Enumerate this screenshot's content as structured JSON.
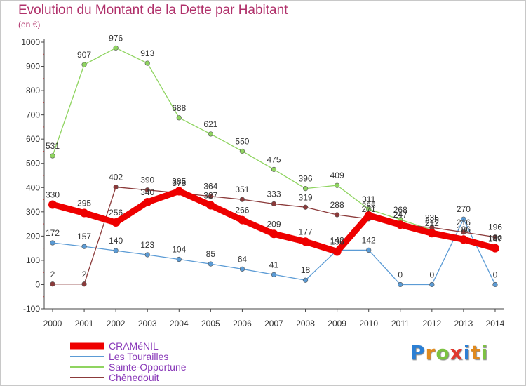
{
  "header": {
    "title": "Evolution du Montant de la Dette par Habitant",
    "subtitle": "(en €)"
  },
  "logo": {
    "letters": [
      "P",
      "r",
      "o",
      "x",
      "i",
      "t",
      "i"
    ],
    "colors": [
      "#2b7fd4",
      "#e08a1e",
      "#7cc242",
      "#e03a2f",
      "#2b7fd4",
      "#e08a1e",
      "#7cc242"
    ]
  },
  "chart_data": {
    "type": "line",
    "title": "Evolution du Montant de la Dette par Habitant",
    "ylabel": "(en €)",
    "xlabel": "",
    "x": [
      "2000",
      "2001",
      "2002",
      "2003",
      "2004",
      "2005",
      "2006",
      "2007",
      "2008",
      "2009",
      "2010",
      "2011",
      "2012",
      "2013",
      "2014"
    ],
    "ylim": [
      -100,
      1000
    ],
    "yticks": [
      -100,
      0,
      100,
      200,
      300,
      400,
      500,
      600,
      700,
      800,
      900,
      1000
    ],
    "grid": false,
    "legend_position": "bottom-left",
    "series": [
      {
        "name": "Les Tourailles",
        "color": "#5b9bd5",
        "values": [
          172,
          157,
          140,
          123,
          104,
          85,
          64,
          41,
          18,
          142,
          142,
          0,
          0,
          270,
          0
        ],
        "labels": [
          "172",
          "157",
          "140",
          "123",
          "104",
          "85",
          "64",
          "41",
          "18",
          "142",
          "142",
          "0",
          "0",
          "270",
          "0"
        ]
      },
      {
        "name": "Sainte-Opportune",
        "color": "#8fd460",
        "values": [
          531,
          907,
          976,
          913,
          688,
          621,
          550,
          475,
          396,
          409,
          311,
          268,
          225,
          186,
          147
        ],
        "labels": [
          "531",
          "907",
          "976",
          "913",
          "688",
          "621",
          "550",
          "475",
          "396",
          "409",
          "311",
          "268",
          "225",
          "186",
          "147"
        ]
      },
      {
        "name": "Chênedouit",
        "color": "#8b3a3a",
        "values": [
          2,
          2,
          402,
          390,
          378,
          364,
          351,
          333,
          319,
          288,
          271,
          247,
          235,
          216,
          196
        ],
        "labels": [
          "2",
          "2",
          "402",
          "390",
          "378",
          "364",
          "351",
          "333",
          "319",
          "288",
          "271",
          "247",
          "235",
          "216",
          "196"
        ]
      },
      {
        "name": "CRAMéNIL",
        "color": "#ee0000",
        "values": [
          330,
          295,
          256,
          340,
          385,
          327,
          266,
          209,
          177,
          136,
          285,
          247,
          212,
          186,
          150
        ],
        "labels": [
          "330",
          "295",
          "256",
          "340",
          "385",
          "327",
          "266",
          "209",
          "177",
          "136",
          "285",
          "247",
          "212",
          "186",
          "150"
        ]
      }
    ]
  }
}
